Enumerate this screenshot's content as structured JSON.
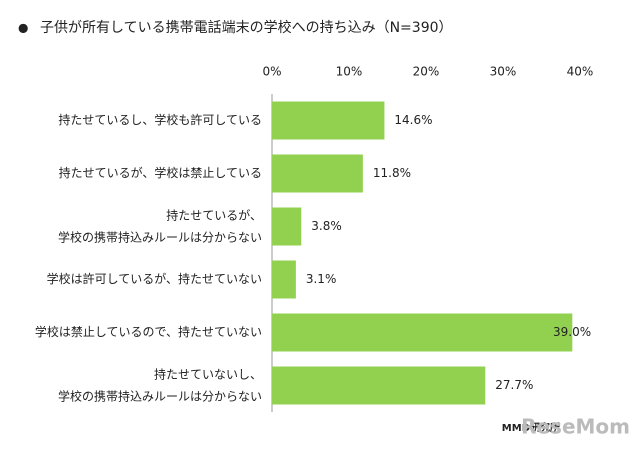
{
  "chart_data": {
    "type": "hbar",
    "bullet": "●",
    "title": "子供が所有している携帯電話端末の学校への持ち込み（N=390）",
    "categories": [
      "持たせているし、学校も許可している",
      "持たせているが、学校は禁止している",
      "持たせているが、\n学校の携帯持込みルールは分からない",
      "学校は許可しているが、持たせていない",
      "学校は禁止しているので、持たせていない",
      "持たせていないし、\n学校の携帯持込みルールは分からない"
    ],
    "values": [
      14.6,
      11.8,
      3.8,
      3.1,
      39.0,
      27.7
    ],
    "value_labels": [
      "14.6%",
      "11.8%",
      "3.8%",
      "3.1%",
      "39.0%",
      "27.7%"
    ],
    "color": "#92d050",
    "xlim": [
      0,
      40
    ],
    "xticks": [
      {
        "value": 0,
        "label": "0%"
      },
      {
        "value": 10,
        "label": "10%"
      },
      {
        "value": 20,
        "label": "20%"
      },
      {
        "value": 30,
        "label": "30%"
      },
      {
        "value": 40,
        "label": "40%"
      }
    ],
    "source": "MMD研究所",
    "watermark": "ReseMom"
  }
}
